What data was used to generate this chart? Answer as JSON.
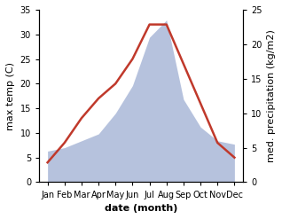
{
  "months": [
    "Jan",
    "Feb",
    "Mar",
    "Apr",
    "May",
    "Jun",
    "Jul",
    "Aug",
    "Sep",
    "Oct",
    "Nov",
    "Dec"
  ],
  "temperature": [
    4,
    8,
    13,
    17,
    20,
    25,
    32,
    32,
    24,
    16,
    8,
    5
  ],
  "precipitation": [
    4.5,
    5.0,
    6.0,
    7.0,
    10.0,
    14.0,
    21.0,
    23.5,
    12.0,
    8.0,
    6.0,
    5.5
  ],
  "temp_color": "#c0392b",
  "precip_color": "#aab8d8",
  "precip_edge_color": "#aab8d8",
  "left_ylim": [
    0,
    35
  ],
  "right_ylim": [
    0,
    25
  ],
  "left_yticks": [
    0,
    5,
    10,
    15,
    20,
    25,
    30,
    35
  ],
  "right_yticks": [
    0,
    5,
    10,
    15,
    20,
    25
  ],
  "left_ylabel": "max temp (C)",
  "right_ylabel": "med. precipitation (kg/m2)",
  "xlabel": "date (month)",
  "title": "",
  "bg_color": "#ffffff",
  "figsize": [
    3.18,
    2.47
  ],
  "dpi": 100
}
